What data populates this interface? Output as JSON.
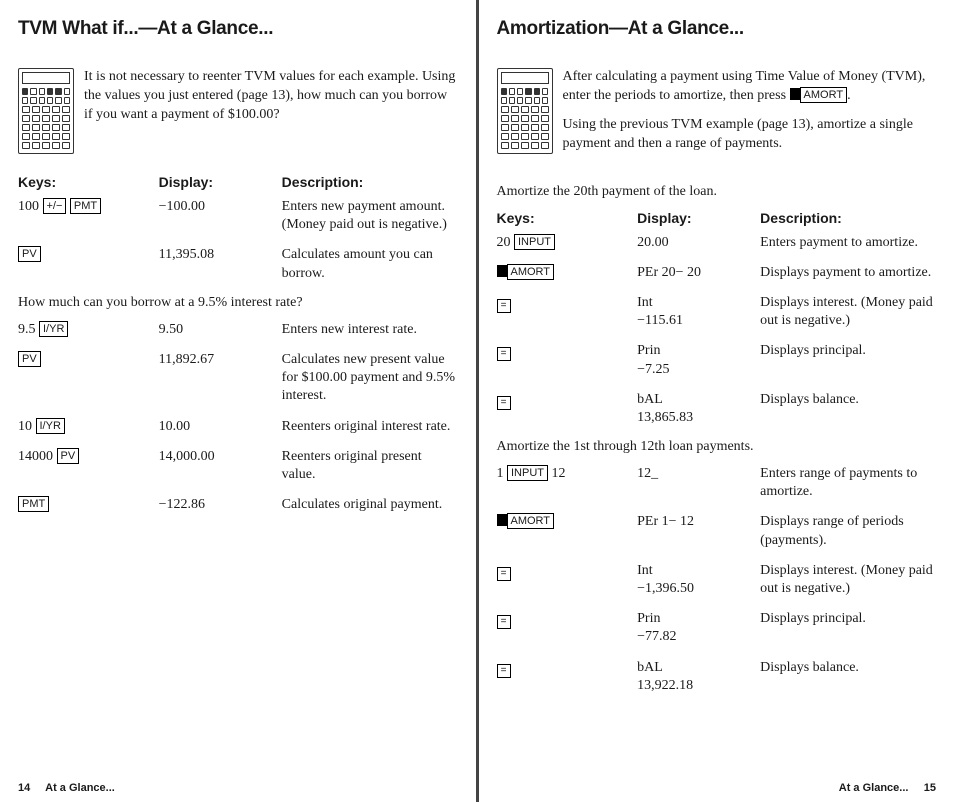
{
  "left": {
    "title": "TVM What if...—At a Glance...",
    "intro": "It is not necessary to reenter TVM values for each example. Using the values you just entered (page 13), how much can you borrow if you want a payment of $100.00?",
    "headers": {
      "keys": "Keys:",
      "display": "Display:",
      "description": "Description:"
    },
    "rows1": [
      {
        "keys_pre": "100 ",
        "keycaps": [
          "+/−",
          "PMT"
        ],
        "display": "−100.00",
        "desc": "Enters new payment amount. (Money paid out is negative.)"
      },
      {
        "keys_pre": "",
        "keycaps": [
          "PV"
        ],
        "display": "11,395.08",
        "desc": "Calculates amount you can borrow."
      }
    ],
    "note1": "How much can you borrow at a 9.5% interest rate?",
    "rows2": [
      {
        "keys_pre": "9.5 ",
        "keycaps": [
          "I/YR"
        ],
        "display": "9.50",
        "desc": "Enters new interest rate."
      },
      {
        "keys_pre": "",
        "keycaps": [
          "PV"
        ],
        "display": "11,892.67",
        "desc": "Calculates new present value for $100.00 payment and 9.5% interest."
      },
      {
        "keys_pre": "10 ",
        "keycaps": [
          "I/YR"
        ],
        "display": "10.00",
        "desc": "Reenters original interest rate."
      },
      {
        "keys_pre": "14000 ",
        "keycaps": [
          "PV"
        ],
        "display": "14,000.00",
        "desc": "Reenters original present value."
      },
      {
        "keys_pre": "",
        "keycaps": [
          "PMT"
        ],
        "display": "−122.86",
        "desc": "Calculates original payment."
      }
    ],
    "footer_page": "14",
    "footer_label": "At a Glance..."
  },
  "right": {
    "title": "Amortization—At a Glance...",
    "intro1a": "After calculating a payment using Time Value of Money (TVM), enter the periods to amortize, then press ",
    "intro1_keycap": "AMORT",
    "intro1b": ".",
    "intro2": "Using the previous TVM example (page 13), amortize a single payment and then a range of payments.",
    "note1": "Amortize the 20th payment of the loan.",
    "headers": {
      "keys": "Keys:",
      "display": "Display:",
      "description": "Description:"
    },
    "rows1": [
      {
        "type": "kc",
        "keys_pre": "20 ",
        "keycaps": [
          "INPUT"
        ],
        "display": "20.00",
        "desc": "Enters payment to amortize."
      },
      {
        "type": "shift-kc",
        "keys_pre": "",
        "keycaps": [
          "AMORT"
        ],
        "display": "PEr 20− 20",
        "desc": "Displays payment to amortize."
      },
      {
        "type": "eq",
        "display": "Int\n−115.61",
        "desc": "Displays interest. (Money paid out is negative.)"
      },
      {
        "type": "eq",
        "display": "Prin\n−7.25",
        "desc": "Displays principal."
      },
      {
        "type": "eq",
        "display": "bAL\n13,865.83",
        "desc": "Displays balance."
      }
    ],
    "note2": "Amortize the 1st through 12th loan payments.",
    "rows2": [
      {
        "type": "kc",
        "keys_pre": "1 ",
        "keycaps": [
          "INPUT"
        ],
        "keys_post": " 12",
        "display": "12_",
        "desc": "Enters range of payments to amortize."
      },
      {
        "type": "shift-kc",
        "keys_pre": "",
        "keycaps": [
          "AMORT"
        ],
        "display": "PEr 1− 12",
        "desc": "Displays range of periods (payments)."
      },
      {
        "type": "eq",
        "display": "Int\n−1,396.50",
        "desc": "Displays interest. (Money paid out is negative.)"
      },
      {
        "type": "eq",
        "display": "Prin\n−77.82",
        "desc": "Displays principal."
      },
      {
        "type": "eq",
        "display": "bAL\n13,922.18",
        "desc": "Displays balance."
      }
    ],
    "footer_label": "At a Glance...",
    "footer_page": "15"
  }
}
